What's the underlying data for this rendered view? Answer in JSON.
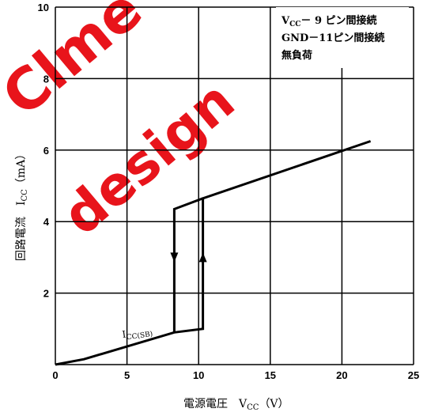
{
  "chart_data": {
    "type": "line",
    "title": "",
    "xlabel": "電源電圧　V",
    "xlabel_sub": "CC",
    "xlabel_unit": "（V）",
    "ylabel": "回路電流　I",
    "ylabel_sub": "CC",
    "ylabel_unit": "（mA）",
    "xlim": [
      0,
      25
    ],
    "ylim": [
      0,
      10
    ],
    "x_ticks": [
      0,
      5,
      10,
      15,
      20,
      25
    ],
    "y_ticks": [
      0,
      2,
      4,
      6,
      8,
      10
    ],
    "grid": true,
    "series": [
      {
        "values_xy": [
          [
            0,
            0
          ],
          [
            2,
            0.15
          ],
          [
            8.3,
            0.9
          ],
          [
            10.3,
            1.0
          ],
          [
            10.3,
            4.65
          ],
          [
            22,
            6.25
          ]
        ]
      },
      {
        "values_xy": [
          [
            8.3,
            0.9
          ],
          [
            8.3,
            4.35
          ],
          [
            10.3,
            4.65
          ]
        ]
      }
    ],
    "arrows": [
      {
        "x": 8.3,
        "y": 3.0,
        "direction": "down"
      },
      {
        "x": 10.3,
        "y": 3.0,
        "direction": "up"
      }
    ],
    "annotations": [
      {
        "text": "I",
        "sub": "CC(SB)",
        "x": 4.7,
        "y": 0.75
      }
    ],
    "notes": [
      {
        "main": "V",
        "sub": "CC",
        "rest": "－ 9 ピン間接続"
      },
      {
        "main": "GND－11ピン間接続",
        "sub": "",
        "rest": ""
      },
      {
        "main": "無負荷",
        "sub": "",
        "rest": ""
      }
    ]
  },
  "watermark": {
    "line1": "Clme",
    "line2": "design",
    "color": "#e8141b"
  }
}
